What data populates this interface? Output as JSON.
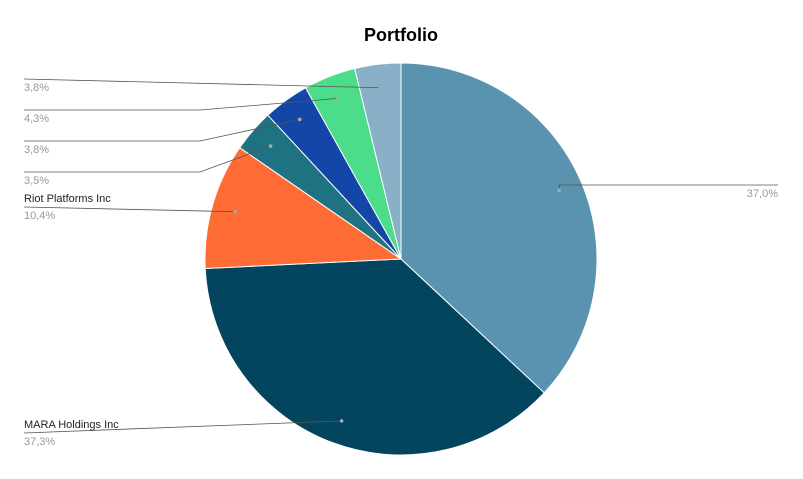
{
  "chart_data": {
    "type": "pie",
    "title": "Portfolio",
    "categories": [
      null,
      "MARA Holdings Inc",
      "Riot Platforms Inc",
      null,
      null,
      null,
      null
    ],
    "values": [
      37.0,
      37.3,
      10.4,
      3.5,
      3.8,
      4.3,
      3.8
    ],
    "value_labels": [
      "37,0%",
      "37,3%",
      "10,4%",
      "3,5%",
      "3,8%",
      "4,3%",
      "3,8%"
    ],
    "colors": [
      "#5a93b0",
      "#03445e",
      "#ff6b35",
      "#1f7282",
      "#1446a8",
      "#4cdd8a",
      "#8ab0c8"
    ]
  }
}
